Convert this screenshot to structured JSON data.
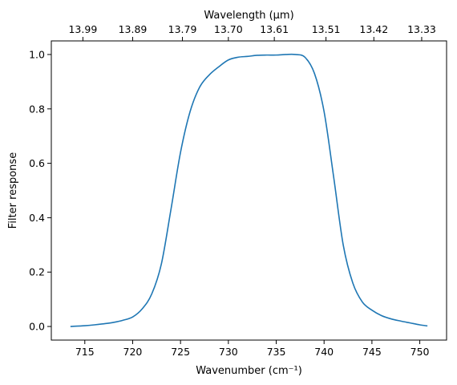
{
  "chart_data": {
    "type": "line",
    "xlabel": "Wavenumber",
    "xlabel_unit": "(cm⁻¹)",
    "ylabel": "Filter response",
    "top_xlabel": "Wavelength",
    "top_xlabel_unit": "(μm)",
    "xlim": [
      711.5,
      752.8
    ],
    "ylim": [
      -0.05,
      1.05
    ],
    "x_ticks": [
      715,
      720,
      725,
      730,
      735,
      740,
      745,
      750
    ],
    "y_ticks": [
      "0.0",
      "0.2",
      "0.4",
      "0.6",
      "0.8",
      "1.0"
    ],
    "top_ticks": [
      {
        "label": "13.99",
        "wavenumber": 714.8
      },
      {
        "label": "13.89",
        "wavenumber": 720.0
      },
      {
        "label": "13.79",
        "wavenumber": 725.2
      },
      {
        "label": "13.70",
        "wavenumber": 730.0
      },
      {
        "label": "13.61",
        "wavenumber": 734.8
      },
      {
        "label": "13.51",
        "wavenumber": 740.2
      },
      {
        "label": "13.42",
        "wavenumber": 745.2
      },
      {
        "label": "13.33",
        "wavenumber": 750.2
      }
    ],
    "grid": false,
    "color": "#1f77b4",
    "series": [
      {
        "x": [
          713.5,
          715,
          716,
          717,
          718,
          719,
          720,
          721,
          722,
          723,
          724,
          725,
          726,
          727,
          728,
          729,
          730,
          731,
          732,
          733,
          734,
          735,
          736,
          737,
          738,
          739,
          740,
          741,
          742,
          743,
          744,
          745,
          746,
          747,
          748,
          749,
          750,
          750.8
        ],
        "y": [
          0.0,
          0.003,
          0.006,
          0.01,
          0.015,
          0.023,
          0.035,
          0.065,
          0.12,
          0.23,
          0.43,
          0.64,
          0.79,
          0.88,
          0.925,
          0.955,
          0.98,
          0.99,
          0.993,
          0.997,
          0.998,
          0.998,
          1.0,
          1.0,
          0.99,
          0.93,
          0.79,
          0.55,
          0.3,
          0.16,
          0.09,
          0.06,
          0.04,
          0.028,
          0.02,
          0.013,
          0.006,
          0.002
        ]
      }
    ]
  }
}
